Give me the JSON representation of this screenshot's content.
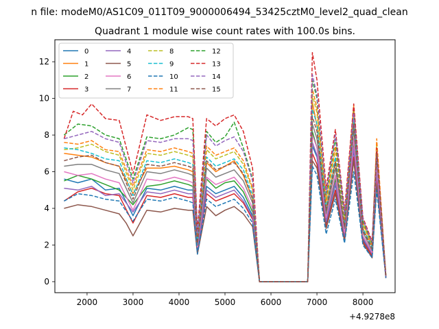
{
  "suptitle": "n file: modeM0/AS1C09_011T09_9000006494_53425cztM0_level2_quad_clean",
  "chart_data": {
    "type": "line",
    "title": "Quadrant 1 module wise count rates with 100.0s bins.",
    "xlabel": "",
    "ylabel": "",
    "x_offset_label": "+4.9278e8",
    "xlim": [
      1300,
      8700
    ],
    "ylim": [
      -0.6,
      13.2
    ],
    "xticks": [
      2000,
      3000,
      4000,
      5000,
      6000,
      7000,
      8000
    ],
    "yticks": [
      0,
      2,
      4,
      6,
      8,
      10,
      12
    ],
    "grid": false,
    "legend_position": "top-left",
    "legend_columns": 4,
    "series": [
      {
        "name": "0",
        "color": "#1f77b4",
        "style": "solid",
        "x": [
          1500,
          1800,
          2100,
          2400,
          2700,
          3000,
          3300,
          3600,
          3900,
          4200,
          4300,
          4400,
          4600,
          4800,
          5000,
          5200,
          5400,
          5600,
          5750,
          5800,
          6800,
          6900,
          7000,
          7200,
          7400,
          7600,
          7800,
          8000,
          8200,
          8300,
          8500
        ],
        "y": [
          5.6,
          5.4,
          5.6,
          5.0,
          5.1,
          3.6,
          5.1,
          5.0,
          5.2,
          5.0,
          5.0,
          1.8,
          5.2,
          4.8,
          5.0,
          5.2,
          4.6,
          3.6,
          0.0,
          0.0,
          0.0,
          7.4,
          6.8,
          3.2,
          5.3,
          2.4,
          7.2,
          2.3,
          1.5,
          5.9,
          0.2
        ]
      },
      {
        "name": "1",
        "color": "#ff7f0e",
        "style": "solid",
        "x": [
          1500,
          1800,
          2100,
          2400,
          2700,
          3000,
          3300,
          3600,
          3900,
          4200,
          4300,
          4400,
          4600,
          4800,
          5000,
          5200,
          5400,
          5600,
          5750,
          5800,
          6800,
          6900,
          7000,
          7200,
          7400,
          7600,
          7800,
          8000,
          8200,
          8300,
          8500
        ],
        "y": [
          7.0,
          6.9,
          6.8,
          6.5,
          6.3,
          4.8,
          6.2,
          6.2,
          6.3,
          6.1,
          6.0,
          2.2,
          6.5,
          6.0,
          6.3,
          6.6,
          5.8,
          4.5,
          0.0,
          0.0,
          0.0,
          9.8,
          8.5,
          4.0,
          6.6,
          3.0,
          8.9,
          2.9,
          1.9,
          7.2,
          0.3
        ]
      },
      {
        "name": "2",
        "color": "#2ca02c",
        "style": "solid",
        "x": [
          1500,
          1800,
          2100,
          2400,
          2700,
          3000,
          3300,
          3600,
          3900,
          4200,
          4300,
          4400,
          4600,
          4800,
          5000,
          5200,
          5400,
          5600,
          5750,
          5800,
          6800,
          6900,
          7000,
          7200,
          7400,
          7600,
          7800,
          8000,
          8200,
          8300,
          8500
        ],
        "y": [
          5.5,
          5.8,
          5.6,
          5.3,
          5.0,
          4.2,
          5.2,
          5.3,
          5.5,
          5.3,
          5.2,
          1.9,
          5.6,
          5.1,
          5.4,
          5.5,
          4.9,
          3.8,
          0.0,
          0.0,
          0.0,
          8.2,
          7.3,
          3.4,
          5.6,
          2.6,
          7.6,
          2.5,
          1.6,
          6.2,
          0.2
        ]
      },
      {
        "name": "3",
        "color": "#d62728",
        "style": "solid",
        "x": [
          1500,
          1800,
          2100,
          2400,
          2700,
          3000,
          3300,
          3600,
          3900,
          4200,
          4300,
          4400,
          4600,
          4800,
          5000,
          5200,
          5400,
          5600,
          5750,
          5800,
          6800,
          6900,
          7000,
          7200,
          7400,
          7600,
          7800,
          8000,
          8200,
          8300,
          8500
        ],
        "y": [
          4.4,
          4.9,
          5.1,
          4.8,
          4.7,
          3.2,
          4.7,
          4.6,
          4.8,
          4.6,
          4.6,
          1.6,
          4.8,
          4.4,
          4.6,
          4.8,
          4.3,
          3.4,
          0.0,
          0.0,
          0.0,
          7.0,
          6.4,
          3.0,
          5.0,
          2.3,
          6.8,
          2.2,
          1.4,
          5.5,
          0.2
        ]
      },
      {
        "name": "4",
        "color": "#9467bd",
        "style": "solid",
        "x": [
          1500,
          1800,
          2100,
          2400,
          2700,
          3000,
          3300,
          3600,
          3900,
          4200,
          4300,
          4400,
          4600,
          4800,
          5000,
          5200,
          5400,
          5600,
          5750,
          5800,
          6800,
          6900,
          7000,
          7200,
          7400,
          7600,
          7800,
          8000,
          8200,
          8300,
          8500
        ],
        "y": [
          5.1,
          5.0,
          5.2,
          4.7,
          4.8,
          3.8,
          4.9,
          4.8,
          5.0,
          4.8,
          4.8,
          1.7,
          5.0,
          4.6,
          4.8,
          5.0,
          4.4,
          3.5,
          0.0,
          0.0,
          0.0,
          7.6,
          6.9,
          3.3,
          5.4,
          2.5,
          7.3,
          2.4,
          1.5,
          6.0,
          0.2
        ]
      },
      {
        "name": "5",
        "color": "#8c564b",
        "style": "solid",
        "x": [
          1500,
          1800,
          2100,
          2400,
          2700,
          2850,
          3000,
          3300,
          3600,
          3900,
          4200,
          4300,
          4400,
          4600,
          4800,
          5000,
          5200,
          5400,
          5600,
          5750,
          5800,
          6800,
          6900,
          7000,
          7200,
          7400,
          7600,
          7800,
          8000,
          8200,
          8300,
          8500
        ],
        "y": [
          4.0,
          4.2,
          4.1,
          3.9,
          3.7,
          3.2,
          2.5,
          3.9,
          3.8,
          4.0,
          3.9,
          3.9,
          1.5,
          4.1,
          3.6,
          3.9,
          4.1,
          3.7,
          3.0,
          0.0,
          0.0,
          0.0,
          6.6,
          6.2,
          2.9,
          4.8,
          2.2,
          6.6,
          2.1,
          1.3,
          5.3,
          0.2
        ]
      },
      {
        "name": "6",
        "color": "#e377c2",
        "style": "solid",
        "x": [
          1500,
          1800,
          2100,
          2400,
          2700,
          3000,
          3300,
          3600,
          3900,
          4200,
          4300,
          4400,
          4600,
          4800,
          5000,
          5200,
          5400,
          5600,
          5750,
          5800,
          6800,
          6900,
          7000,
          7200,
          7400,
          7600,
          7800,
          8000,
          8200,
          8300,
          8500
        ],
        "y": [
          6.0,
          5.8,
          5.9,
          5.6,
          5.4,
          3.9,
          5.6,
          5.5,
          5.7,
          5.5,
          5.4,
          1.9,
          5.7,
          5.3,
          5.5,
          5.7,
          5.1,
          4.0,
          0.0,
          0.0,
          0.0,
          8.0,
          7.3,
          3.5,
          5.8,
          2.7,
          7.8,
          2.5,
          1.6,
          6.4,
          0.2
        ]
      },
      {
        "name": "7",
        "color": "#7f7f7f",
        "style": "solid",
        "x": [
          1500,
          1800,
          2100,
          2400,
          2700,
          3000,
          3300,
          3600,
          3900,
          4200,
          4300,
          4400,
          4600,
          4800,
          5000,
          5200,
          5400,
          5600,
          5750,
          5800,
          6800,
          6900,
          7000,
          7200,
          7400,
          7600,
          7800,
          8000,
          8200,
          8300,
          8500
        ],
        "y": [
          6.3,
          6.4,
          6.4,
          6.1,
          5.9,
          4.3,
          6.0,
          5.9,
          6.1,
          5.9,
          5.8,
          2.0,
          6.2,
          5.7,
          5.9,
          6.1,
          5.5,
          4.3,
          0.0,
          0.0,
          0.0,
          8.6,
          7.8,
          3.7,
          6.2,
          2.9,
          8.3,
          2.7,
          1.7,
          6.8,
          0.3
        ]
      },
      {
        "name": "8",
        "color": "#bcbd22",
        "style": "dashed",
        "x": [
          1500,
          1800,
          2100,
          2400,
          2700,
          3000,
          3300,
          3600,
          3900,
          4200,
          4300,
          4400,
          4600,
          4800,
          5000,
          5200,
          5400,
          5600,
          5750,
          5800,
          6800,
          6900,
          7000,
          7200,
          7400,
          7600,
          7800,
          8000,
          8200,
          8300,
          8500
        ],
        "y": [
          7.2,
          7.3,
          7.5,
          7.1,
          6.9,
          5.0,
          7.0,
          6.9,
          7.1,
          6.9,
          6.8,
          2.4,
          7.2,
          6.7,
          6.9,
          7.1,
          6.4,
          5.0,
          0.0,
          0.0,
          0.0,
          10.2,
          9.2,
          4.3,
          7.2,
          3.3,
          9.4,
          3.1,
          2.0,
          7.6,
          0.3
        ]
      },
      {
        "name": "9",
        "color": "#17becf",
        "style": "dashed",
        "x": [
          1500,
          1800,
          2100,
          2400,
          2700,
          3000,
          3300,
          3600,
          3900,
          4200,
          4300,
          4400,
          4600,
          4800,
          5000,
          5200,
          5400,
          5600,
          5750,
          5800,
          6800,
          6900,
          7000,
          7200,
          7400,
          7600,
          7800,
          8000,
          8200,
          8300,
          8500
        ],
        "y": [
          7.3,
          7.2,
          7.0,
          6.7,
          6.6,
          4.7,
          6.6,
          6.5,
          6.7,
          6.5,
          6.4,
          2.3,
          6.8,
          6.3,
          6.5,
          6.7,
          6.1,
          4.7,
          0.0,
          0.0,
          0.0,
          9.4,
          8.6,
          4.0,
          6.8,
          3.1,
          8.9,
          2.9,
          1.9,
          7.2,
          0.3
        ]
      },
      {
        "name": "10",
        "color": "#1f77b4",
        "style": "dashed",
        "x": [
          1500,
          1800,
          2100,
          2400,
          2700,
          3000,
          3300,
          3600,
          3900,
          4200,
          4300,
          4400,
          4600,
          4800,
          5000,
          5200,
          5400,
          5600,
          5750,
          5800,
          6800,
          6900,
          7000,
          7200,
          7400,
          7600,
          7800,
          8000,
          8200,
          8300,
          8500
        ],
        "y": [
          4.4,
          4.8,
          4.7,
          4.5,
          4.4,
          3.3,
          4.5,
          4.4,
          4.6,
          4.4,
          4.3,
          1.5,
          4.5,
          4.1,
          4.3,
          4.5,
          4.0,
          3.2,
          0.0,
          0.0,
          0.0,
          6.3,
          5.8,
          2.6,
          4.5,
          2.1,
          6.0,
          2.0,
          1.3,
          5.0,
          0.2
        ]
      },
      {
        "name": "11",
        "color": "#ff7f0e",
        "style": "dashed",
        "x": [
          1500,
          1800,
          2100,
          2400,
          2700,
          3000,
          3300,
          3600,
          3900,
          4200,
          4300,
          4400,
          4600,
          4800,
          5000,
          5200,
          5400,
          5600,
          5750,
          5800,
          6800,
          6900,
          7000,
          7200,
          7400,
          7600,
          7800,
          8000,
          8200,
          8300,
          8500
        ],
        "y": [
          7.6,
          7.5,
          7.7,
          7.2,
          7.1,
          5.2,
          7.2,
          7.1,
          7.3,
          7.1,
          7.0,
          2.5,
          7.4,
          6.9,
          7.1,
          7.3,
          6.6,
          5.1,
          0.0,
          0.0,
          0.0,
          10.5,
          9.5,
          4.4,
          7.4,
          3.4,
          9.6,
          3.2,
          2.0,
          7.8,
          0.3
        ]
      },
      {
        "name": "12",
        "color": "#2ca02c",
        "style": "dashed",
        "x": [
          1500,
          1800,
          2100,
          2400,
          2700,
          3000,
          3300,
          3600,
          3900,
          4200,
          4300,
          4400,
          4600,
          4800,
          5000,
          5200,
          5400,
          5600,
          5750,
          5800,
          6800,
          6900,
          7000,
          7200,
          7400,
          7600,
          7800,
          8000,
          8200,
          8300,
          8500
        ],
        "y": [
          8.0,
          8.6,
          8.5,
          8.0,
          7.8,
          5.6,
          7.9,
          7.8,
          8.0,
          8.4,
          8.3,
          2.7,
          8.2,
          7.6,
          7.9,
          8.7,
          7.3,
          5.6,
          0.0,
          0.0,
          0.0,
          11.0,
          10.0,
          4.7,
          7.8,
          3.6,
          9.4,
          3.3,
          2.1,
          7.0,
          0.3
        ]
      },
      {
        "name": "13",
        "color": "#d62728",
        "style": "dashed",
        "x": [
          1500,
          1700,
          1900,
          2100,
          2400,
          2700,
          3000,
          3300,
          3600,
          3900,
          4200,
          4300,
          4400,
          4600,
          4800,
          5000,
          5200,
          5400,
          5600,
          5750,
          5800,
          6800,
          6900,
          7000,
          7200,
          7400,
          7600,
          7800,
          8000,
          8200,
          8300,
          8500
        ],
        "y": [
          7.8,
          9.3,
          9.1,
          9.7,
          8.9,
          8.8,
          5.9,
          9.1,
          8.8,
          9.0,
          9.0,
          8.9,
          2.8,
          8.9,
          8.5,
          8.9,
          9.1,
          8.2,
          6.2,
          0.0,
          0.0,
          0.0,
          12.5,
          11.0,
          5.1,
          8.3,
          3.9,
          9.7,
          3.5,
          2.2,
          7.3,
          0.3
        ]
      },
      {
        "name": "14",
        "color": "#9467bd",
        "style": "dashed",
        "x": [
          1500,
          1800,
          2100,
          2400,
          2700,
          3000,
          3300,
          3600,
          3900,
          4200,
          4300,
          4400,
          4600,
          4800,
          5000,
          5200,
          5400,
          5600,
          5750,
          5800,
          6800,
          6900,
          7000,
          7200,
          7400,
          7600,
          7800,
          8000,
          8200,
          8300,
          8500
        ],
        "y": [
          7.8,
          8.0,
          8.2,
          7.8,
          7.6,
          5.4,
          7.7,
          7.6,
          7.8,
          7.8,
          7.7,
          2.6,
          8.0,
          7.4,
          7.7,
          7.9,
          7.1,
          5.5,
          0.0,
          0.0,
          0.0,
          11.3,
          10.2,
          4.8,
          8.0,
          3.7,
          9.2,
          3.4,
          2.1,
          7.0,
          0.3
        ]
      },
      {
        "name": "15",
        "color": "#8c564b",
        "style": "dashed",
        "x": [
          1500,
          1800,
          2100,
          2400,
          2700,
          3000,
          3300,
          3600,
          3900,
          4200,
          4300,
          4400,
          4600,
          4800,
          5000,
          5200,
          5400,
          5600,
          5750,
          5800,
          6800,
          6900,
          7000,
          7200,
          7400,
          7600,
          7800,
          8000,
          8200,
          8300,
          8500
        ],
        "y": [
          6.6,
          6.8,
          6.9,
          6.5,
          6.3,
          4.5,
          6.4,
          6.3,
          6.5,
          6.3,
          6.2,
          2.1,
          6.6,
          6.1,
          6.3,
          6.5,
          5.9,
          4.5,
          0.0,
          0.0,
          0.0,
          9.0,
          8.2,
          3.9,
          6.5,
          3.0,
          8.6,
          2.8,
          1.8,
          7.0,
          0.3
        ]
      }
    ]
  }
}
